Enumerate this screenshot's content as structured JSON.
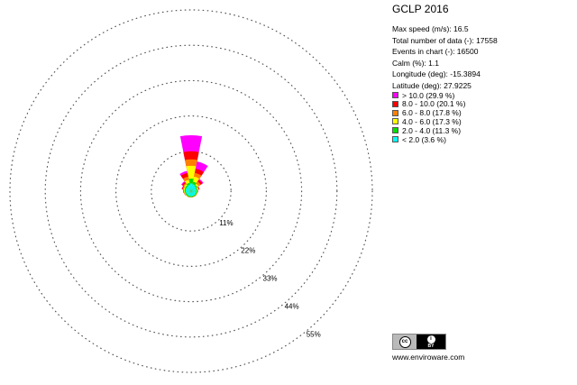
{
  "chart_data": {
    "type": "windrose",
    "title": "GCLP 2016",
    "stats": [
      {
        "label": "Max speed (m/s)",
        "value": "16.5"
      },
      {
        "label": "Total number of data (-)",
        "value": "17558"
      },
      {
        "label": "Events in chart (-)",
        "value": "16500"
      },
      {
        "label": "Calm (%)",
        "value": "1.1"
      },
      {
        "label": "Longitude (deg)",
        "value": "-15.3894"
      },
      {
        "label": "Latitude  (deg)",
        "value": "27.9225"
      }
    ],
    "bins": [
      {
        "label": "> 10.0 (29.9 %)",
        "color": "#ff00ff"
      },
      {
        "label": "8.0 - 10.0 (20.1 %)",
        "color": "#ff0000"
      },
      {
        "label": "6.0 - 8.0 (17.8 %)",
        "color": "#ff8000"
      },
      {
        "label": "4.0 - 6.0 (17.3 %)",
        "color": "#ffff00"
      },
      {
        "label": "2.0 - 4.0 (11.3 %)",
        "color": "#00e000"
      },
      {
        "label": "< 2.0 (3.6 %)",
        "color": "#00ffff"
      }
    ],
    "ring_values": [
      11,
      22,
      33,
      44,
      55
    ],
    "ring_labels": [
      "11%",
      "22%",
      "33%",
      "44%",
      "55%"
    ],
    "max_ring_value": 55,
    "sector_width_deg": 22.5,
    "sectors": [
      {
        "direction_deg": 0,
        "values": [
          1.0,
          2.5,
          6.5,
          8.5,
          11.0,
          16.0
        ]
      },
      {
        "direction_deg": 22.5,
        "values": [
          0.8,
          1.6,
          3.2,
          4.4,
          5.7,
          8.0
        ]
      },
      {
        "direction_deg": 337.5,
        "values": [
          0.6,
          1.2,
          2.2,
          3.2,
          4.4,
          5.0
        ]
      },
      {
        "direction_deg": 45,
        "values": [
          0.5,
          0.9,
          1.4,
          2.2,
          2.8,
          3.2
        ]
      },
      {
        "direction_deg": 315,
        "values": [
          0.4,
          0.8,
          1.2,
          1.6,
          2.0,
          2.3
        ]
      },
      {
        "direction_deg": 67.5,
        "values": [
          0.3,
          0.6,
          0.9,
          1.1,
          1.2,
          1.3
        ]
      },
      {
        "direction_deg": 90,
        "values": [
          0.2,
          0.45,
          0.6,
          0.7,
          0.75,
          0.8
        ]
      },
      {
        "direction_deg": 112.5,
        "values": [
          0.2,
          0.45,
          0.55,
          0.6,
          0.6,
          0.6
        ]
      },
      {
        "direction_deg": 135,
        "values": [
          0.2,
          0.45,
          0.55,
          0.6,
          0.6,
          0.6
        ]
      },
      {
        "direction_deg": 157.5,
        "values": [
          0.2,
          0.45,
          0.5,
          0.55,
          0.55,
          0.55
        ]
      },
      {
        "direction_deg": 180,
        "values": [
          0.2,
          0.45,
          0.5,
          0.55,
          0.55,
          0.55
        ]
      },
      {
        "direction_deg": 202.5,
        "values": [
          0.2,
          0.45,
          0.55,
          0.6,
          0.6,
          0.6
        ]
      },
      {
        "direction_deg": 225,
        "values": [
          0.2,
          0.5,
          0.6,
          0.65,
          0.65,
          0.65
        ]
      },
      {
        "direction_deg": 247.5,
        "values": [
          0.25,
          0.55,
          0.7,
          0.8,
          0.85,
          0.85
        ]
      },
      {
        "direction_deg": 270,
        "values": [
          0.3,
          0.65,
          0.9,
          1.0,
          1.1,
          1.1
        ]
      },
      {
        "direction_deg": 292.5,
        "values": [
          0.35,
          0.7,
          1.0,
          1.3,
          1.5,
          1.6
        ]
      }
    ]
  },
  "badge": {
    "cc": "cc",
    "by_symbol": "i",
    "by_text": "BY"
  },
  "website": "www.enviroware.com"
}
